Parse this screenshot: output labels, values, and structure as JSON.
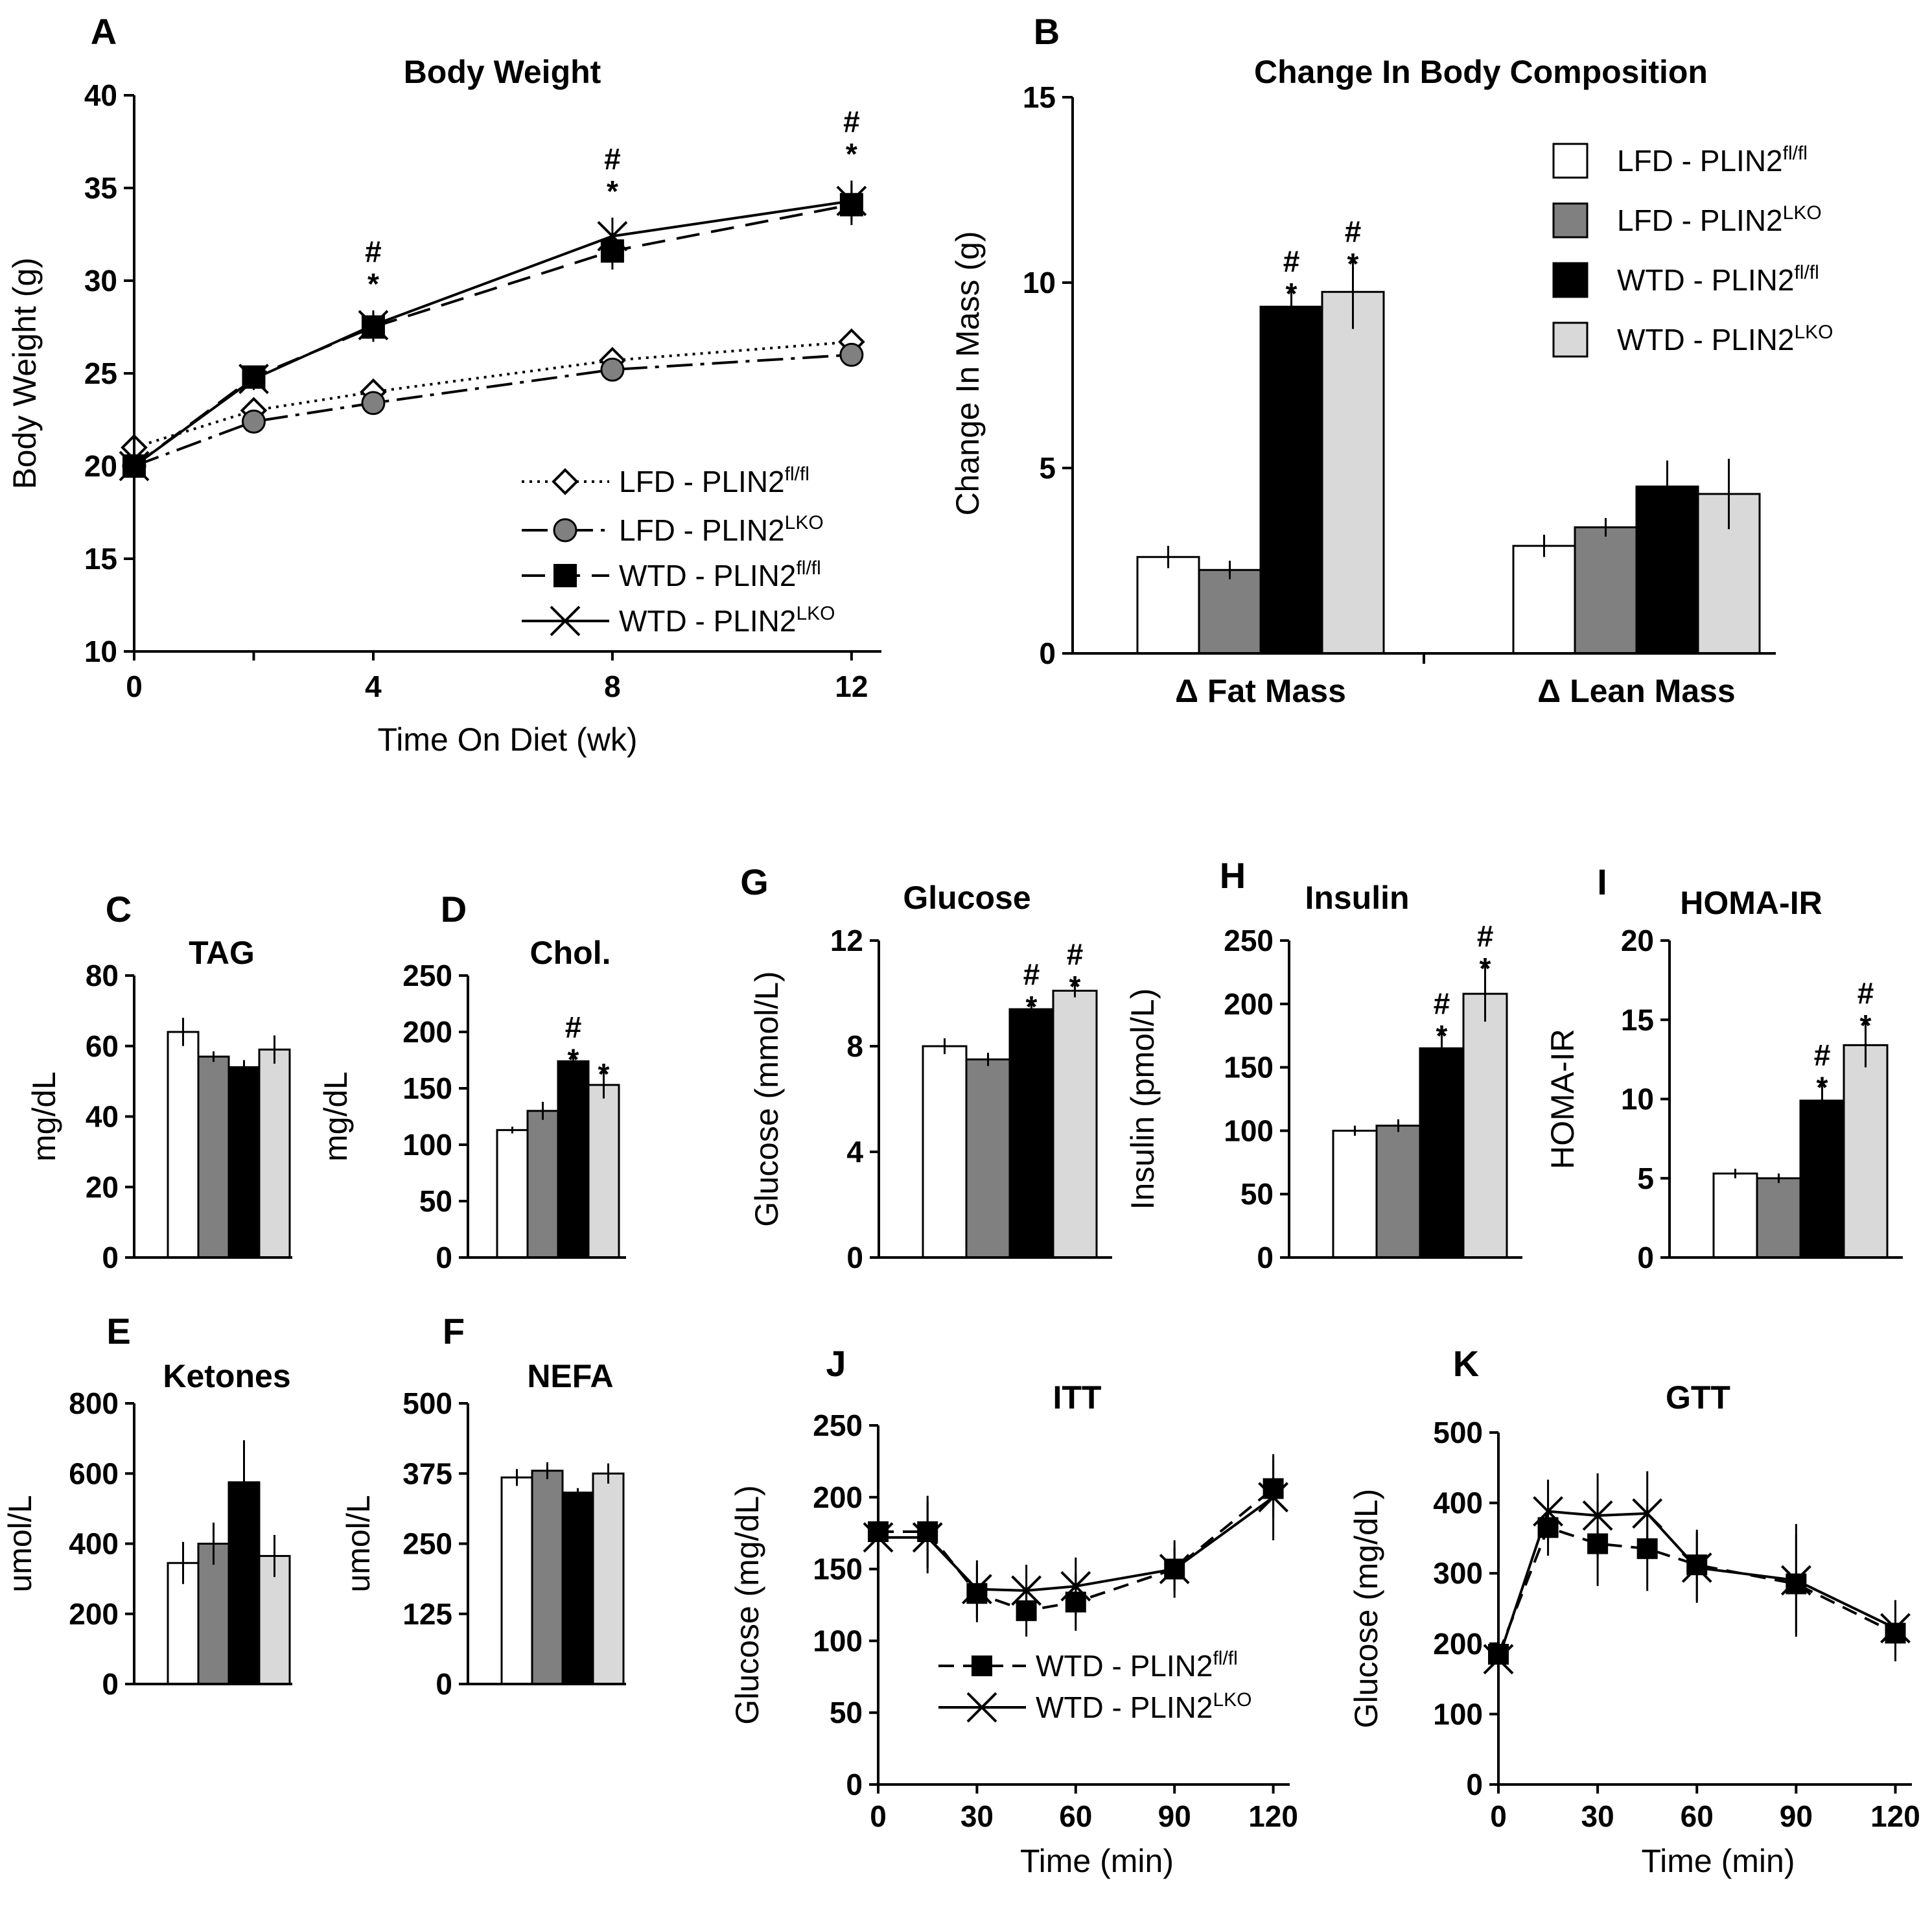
{
  "colors": {
    "LFD_fl": "#ffffff",
    "LFD_LKO": "#808080",
    "WTD_fl": "#000000",
    "WTD_LKO": "#d9d9d9"
  },
  "legend_groups": [
    {
      "diet": "LFD - PLIN2",
      "sup": "fl/fl"
    },
    {
      "diet": "LFD - PLIN2",
      "sup": "LKO"
    },
    {
      "diet": "WTD - PLIN2",
      "sup": "fl/fl"
    },
    {
      "diet": "WTD - PLIN2",
      "sup": "LKO"
    }
  ],
  "chart_data": [
    {
      "panel": "A",
      "type": "line",
      "title": "Body Weight",
      "xlabel": "Time On Diet (wk)",
      "ylabel": "Body Weight (g)",
      "xlim": [
        0,
        12.5
      ],
      "ylim": [
        10,
        40
      ],
      "xticks": [
        "0",
        "4",
        "8",
        "12"
      ],
      "yticks": [
        "10",
        "15",
        "20",
        "25",
        "30",
        "35",
        "40"
      ],
      "x": [
        0,
        2,
        4,
        8,
        12
      ],
      "series": [
        {
          "name": "LFD - PLIN2fl/fl",
          "values": [
            21,
            23,
            24,
            25.7,
            26.7
          ],
          "errors": [
            0.5,
            0.5,
            0.5,
            0.5,
            0.5
          ]
        },
        {
          "name": "LFD - PLIN2LKO",
          "values": [
            20,
            22.4,
            23.4,
            25.2,
            26.0
          ],
          "errors": [
            0.5,
            0.5,
            0.5,
            0.5,
            0.5
          ]
        },
        {
          "name": "WTD - PLIN2fl/fl",
          "values": [
            20,
            24.8,
            27.5,
            31.6,
            34.1
          ],
          "errors": [
            0.5,
            0.6,
            0.8,
            1.0,
            1.1
          ]
        },
        {
          "name": "WTD - PLIN2LKO",
          "values": [
            20,
            24.7,
            27.6,
            32.4,
            34.3
          ],
          "errors": [
            0.5,
            0.6,
            0.8,
            1.0,
            1.1
          ]
        }
      ],
      "annotations": [
        {
          "x": 4,
          "hash": "#",
          "star": "*"
        },
        {
          "x": 8,
          "hash": "#",
          "star": "*"
        },
        {
          "x": 12,
          "hash": "#",
          "star": "*"
        }
      ]
    },
    {
      "panel": "B",
      "type": "bar",
      "title": "Change In Body Composition",
      "ylabel": "Change In Mass (g)",
      "ylim": [
        0,
        15
      ],
      "yticks": [
        "0",
        "5",
        "10",
        "15"
      ],
      "categories": [
        "Δ Fat Mass",
        "Δ Lean Mass"
      ],
      "series": [
        {
          "name": "LFD - PLIN2fl/fl",
          "values": [
            2.6,
            2.9
          ],
          "errors": [
            0.3,
            0.3
          ]
        },
        {
          "name": "LFD - PLIN2LKO",
          "values": [
            2.25,
            3.4
          ],
          "errors": [
            0.25,
            0.25
          ]
        },
        {
          "name": "WTD - PLIN2fl/fl",
          "values": [
            9.35,
            4.5
          ],
          "errors": [
            0.6,
            0.7
          ]
        },
        {
          "name": "WTD - PLIN2LKO",
          "values": [
            9.75,
            4.3
          ],
          "errors": [
            1.0,
            0.95
          ]
        }
      ],
      "annotations": [
        {
          "category": 0,
          "series": 2,
          "hash": "#",
          "star": "*"
        },
        {
          "category": 0,
          "series": 3,
          "hash": "#",
          "star": "*"
        }
      ]
    },
    {
      "panel": "C",
      "type": "bar",
      "title": "TAG",
      "ylabel": "mg/dL",
      "ylim": [
        0,
        80
      ],
      "yticks": [
        "0",
        "20",
        "40",
        "60",
        "80"
      ],
      "values": [
        64,
        57,
        54,
        59
      ],
      "errors": [
        4,
        1.5,
        2,
        4
      ],
      "annotations": []
    },
    {
      "panel": "D",
      "type": "bar",
      "title": "Chol.",
      "ylabel": "mg/dL",
      "ylim": [
        0,
        250
      ],
      "yticks": [
        "0",
        "50",
        "100",
        "150",
        "200",
        "250"
      ],
      "values": [
        113,
        130,
        174,
        153
      ],
      "errors": [
        3,
        8,
        4,
        12
      ],
      "annotations": [
        {
          "series": 2,
          "hash": "#",
          "star": "*"
        },
        {
          "series": 3,
          "hash": "",
          "star": "*"
        }
      ]
    },
    {
      "panel": "E",
      "type": "bar",
      "title": "Ketones",
      "ylabel": "umol/L",
      "ylim": [
        0,
        800
      ],
      "yticks": [
        "0",
        "200",
        "400",
        "600",
        "800"
      ],
      "values": [
        345,
        400,
        575,
        365
      ],
      "errors": [
        60,
        60,
        120,
        60
      ],
      "annotations": []
    },
    {
      "panel": "F",
      "type": "bar",
      "title": "NEFA",
      "ylabel": "umol/L",
      "ylim": [
        0,
        500
      ],
      "yticks": [
        "0",
        "125",
        "250",
        "375",
        "500"
      ],
      "values": [
        368,
        380,
        341,
        375
      ],
      "errors": [
        15,
        15,
        8,
        18
      ],
      "annotations": []
    },
    {
      "panel": "G",
      "type": "bar",
      "title": "Glucose",
      "ylabel": "Glucose (mmol/L)",
      "ylim": [
        0,
        12
      ],
      "yticks": [
        "0",
        "4",
        "8",
        "12"
      ],
      "values": [
        8.0,
        7.5,
        9.4,
        10.1
      ],
      "errors": [
        0.3,
        0.25,
        0.2,
        0.25
      ],
      "annotations": [
        {
          "series": 2,
          "hash": "#",
          "star": "*"
        },
        {
          "series": 3,
          "hash": "#",
          "star": "*"
        }
      ]
    },
    {
      "panel": "H",
      "type": "bar",
      "title": "Insulin",
      "ylabel": "Insulin (pmol/L)",
      "ylim": [
        0,
        250
      ],
      "yticks": [
        "0",
        "50",
        "100",
        "150",
        "200",
        "250"
      ],
      "values": [
        100,
        104,
        165,
        208
      ],
      "errors": [
        4,
        5,
        12,
        22
      ],
      "annotations": [
        {
          "series": 2,
          "hash": "#",
          "star": "*"
        },
        {
          "series": 3,
          "hash": "#",
          "star": "*"
        }
      ]
    },
    {
      "panel": "I",
      "type": "bar",
      "title": "HOMA-IR",
      "ylabel": "HOMA-IR",
      "ylim": [
        0,
        20
      ],
      "yticks": [
        "0",
        "5",
        "10",
        "15",
        "20"
      ],
      "values": [
        5.3,
        5.0,
        9.9,
        13.4
      ],
      "errors": [
        0.3,
        0.3,
        1.0,
        1.4
      ],
      "annotations": [
        {
          "series": 2,
          "hash": "#",
          "star": "*"
        },
        {
          "series": 3,
          "hash": "#",
          "star": "*"
        }
      ]
    },
    {
      "panel": "J",
      "type": "line",
      "title": "ITT",
      "xlabel": "Time (min)",
      "ylabel": "Glucose (mg/dL)",
      "xlim": [
        0,
        125
      ],
      "ylim": [
        0,
        250
      ],
      "xticks": [
        "0",
        "30",
        "60",
        "90",
        "120"
      ],
      "yticks": [
        "0",
        "50",
        "100",
        "150",
        "200",
        "250"
      ],
      "x": [
        0,
        15,
        30,
        45,
        60,
        90,
        120
      ],
      "series": [
        {
          "name": "WTD - PLIN2fl/fl",
          "values": [
            176,
            176,
            133,
            121,
            127,
            150,
            206
          ],
          "errors": [
            8,
            25,
            20,
            18,
            20,
            15,
            20
          ]
        },
        {
          "name": "WTD - PLIN2LKO",
          "values": [
            172,
            172,
            136,
            135,
            138,
            150,
            200
          ],
          "errors": [
            8,
            25,
            20,
            18,
            20,
            20,
            30
          ]
        }
      ]
    },
    {
      "panel": "K",
      "type": "line",
      "title": "GTT",
      "xlabel": "Time (min)",
      "ylabel": "Glucose (mg/dL)",
      "xlim": [
        0,
        125
      ],
      "ylim": [
        0,
        500
      ],
      "xticks": [
        "0",
        "30",
        "60",
        "90",
        "120"
      ],
      "yticks": [
        "0",
        "100",
        "200",
        "300",
        "400",
        "500"
      ],
      "x": [
        0,
        15,
        30,
        45,
        60,
        90,
        120
      ],
      "series": [
        {
          "name": "WTD - PLIN2fl/fl",
          "values": [
            185,
            365,
            342,
            335,
            312,
            285,
            215
          ],
          "errors": [
            15,
            40,
            60,
            60,
            50,
            70,
            40
          ]
        },
        {
          "name": "WTD - PLIN2LKO",
          "values": [
            178,
            388,
            382,
            385,
            308,
            290,
            222
          ],
          "errors": [
            15,
            45,
            60,
            60,
            50,
            80,
            40
          ]
        }
      ]
    }
  ]
}
